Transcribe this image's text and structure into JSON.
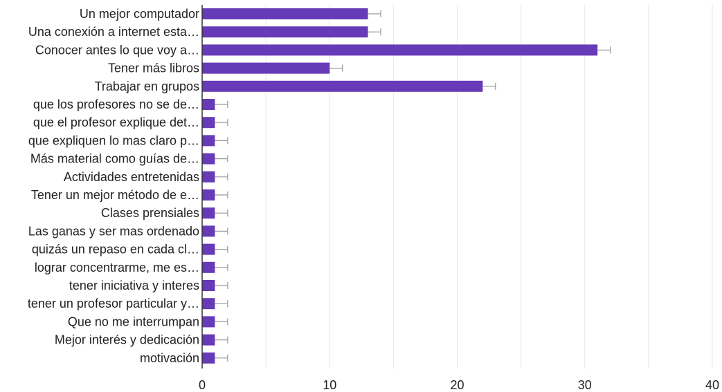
{
  "chart_data": {
    "type": "bar",
    "orientation": "horizontal",
    "categories": [
      "Un mejor computador",
      "Una conexión a internet esta…",
      "Conocer antes lo que voy a…",
      "Tener más libros",
      "Trabajar en grupos",
      "que los profesores no se de…",
      "que el profesor explique det…",
      "que expliquen lo mas claro p…",
      "Más material como guías de…",
      "Actividades entretenidas",
      "Tener un mejor método de e…",
      "Clases prensiales",
      "Las ganas y ser mas ordenado",
      "quizás un repaso en cada cl…",
      "lograr concentrarme, me es…",
      "tener iniciativa y interes",
      "tener un profesor particular y…",
      "Que no me interrumpan",
      "Mejor interés y dedicación",
      "motivación"
    ],
    "values": [
      13,
      13,
      31,
      10,
      22,
      1,
      1,
      1,
      1,
      1,
      1,
      1,
      1,
      1,
      1,
      1,
      1,
      1,
      1,
      1
    ],
    "error_whisker_extent": 1,
    "xlim": [
      0,
      40
    ],
    "xticks": [
      0,
      10,
      20,
      30,
      40
    ],
    "title": "",
    "xlabel": "",
    "ylabel": "",
    "grid": "vertical",
    "bar_color": "#673ab7",
    "whisker_color": "#999999",
    "grid_color": "#e6e6e6",
    "axis_color": "#333333"
  }
}
